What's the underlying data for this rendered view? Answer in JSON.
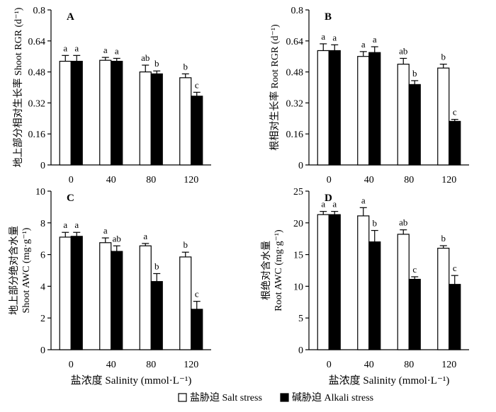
{
  "x_axis_label": "盐浓度 Salinity (mmol·L⁻¹)",
  "legend": {
    "salt": "盐胁迫 Salt stress",
    "alkali": "碱胁迫 Alkali stress"
  },
  "colors": {
    "salt": "#ffffff",
    "alkali": "#000000",
    "axis": "#000000"
  },
  "chart_data": [
    {
      "type": "bar",
      "panel": "A",
      "ylabel": "地上部分相对生长率 Shoot RGR (d⁻¹)",
      "ylim": [
        0,
        0.8
      ],
      "yticks": [
        "0",
        "0.16",
        "0.32",
        "0.48",
        "0.64",
        "0.8"
      ],
      "categories": [
        "0",
        "40",
        "80",
        "120"
      ],
      "series": [
        {
          "name": "盐胁迫 Salt stress",
          "values": [
            0.535,
            0.54,
            0.48,
            0.45
          ],
          "errors": [
            0.03,
            0.015,
            0.035,
            0.02
          ],
          "letters": [
            "a",
            "a",
            "ab",
            "b"
          ]
        },
        {
          "name": "碱胁迫 Alkali stress",
          "values": [
            0.535,
            0.535,
            0.47,
            0.355
          ],
          "errors": [
            0.03,
            0.015,
            0.015,
            0.02
          ],
          "letters": [
            "a",
            "a",
            "b",
            "c"
          ]
        }
      ]
    },
    {
      "type": "bar",
      "panel": "B",
      "ylabel": "根相对生长率 Root RGR (d⁻¹)",
      "ylim": [
        0,
        0.8
      ],
      "yticks": [
        "0",
        "0.16",
        "0.32",
        "0.48",
        "0.64",
        "0.8"
      ],
      "categories": [
        "0",
        "40",
        "80",
        "120"
      ],
      "series": [
        {
          "name": "盐胁迫 Salt stress",
          "values": [
            0.59,
            0.56,
            0.52,
            0.5
          ],
          "errors": [
            0.035,
            0.025,
            0.03,
            0.02
          ],
          "letters": [
            "a",
            "a",
            "ab",
            "b"
          ]
        },
        {
          "name": "碱胁迫 Alkali stress",
          "values": [
            0.59,
            0.58,
            0.415,
            0.225
          ],
          "errors": [
            0.03,
            0.03,
            0.02,
            0.01
          ],
          "letters": [
            "a",
            "a",
            "b",
            "c"
          ]
        }
      ]
    },
    {
      "type": "bar",
      "panel": "C",
      "ylabel": [
        "地上部分绝对含水量",
        "Shoot AWC (mg·g⁻¹)"
      ],
      "ylim": [
        0,
        10
      ],
      "yticks": [
        "0",
        "2",
        "4",
        "6",
        "8",
        "10"
      ],
      "categories": [
        "0",
        "40",
        "80",
        "120"
      ],
      "series": [
        {
          "name": "盐胁迫 Salt stress",
          "values": [
            7.1,
            6.75,
            6.55,
            5.85
          ],
          "errors": [
            0.3,
            0.3,
            0.15,
            0.3
          ],
          "letters": [
            "a",
            "a",
            "a",
            "b"
          ]
        },
        {
          "name": "碱胁迫 Alkali stress",
          "values": [
            7.15,
            6.2,
            4.3,
            2.55
          ],
          "errors": [
            0.25,
            0.35,
            0.5,
            0.5
          ],
          "letters": [
            "a",
            "ab",
            "b",
            "c"
          ]
        }
      ]
    },
    {
      "type": "bar",
      "panel": "D",
      "ylabel": [
        "根绝对含水量",
        "Root AWC (mg·g⁻¹)"
      ],
      "ylim": [
        0,
        25
      ],
      "yticks": [
        "0",
        "5",
        "10",
        "15",
        "20",
        "25"
      ],
      "categories": [
        "0",
        "40",
        "80",
        "120"
      ],
      "series": [
        {
          "name": "盐胁迫 Salt stress",
          "values": [
            21.3,
            21.1,
            18.2,
            16.0
          ],
          "errors": [
            0.5,
            1.3,
            0.7,
            0.4
          ],
          "letters": [
            "a",
            "a",
            "ab",
            "b"
          ]
        },
        {
          "name": "碱胁迫 Alkali stress",
          "values": [
            21.3,
            17.0,
            11.1,
            10.3
          ],
          "errors": [
            0.5,
            1.8,
            0.4,
            1.4
          ],
          "letters": [
            "a",
            "b",
            "c",
            "c"
          ]
        }
      ]
    }
  ]
}
